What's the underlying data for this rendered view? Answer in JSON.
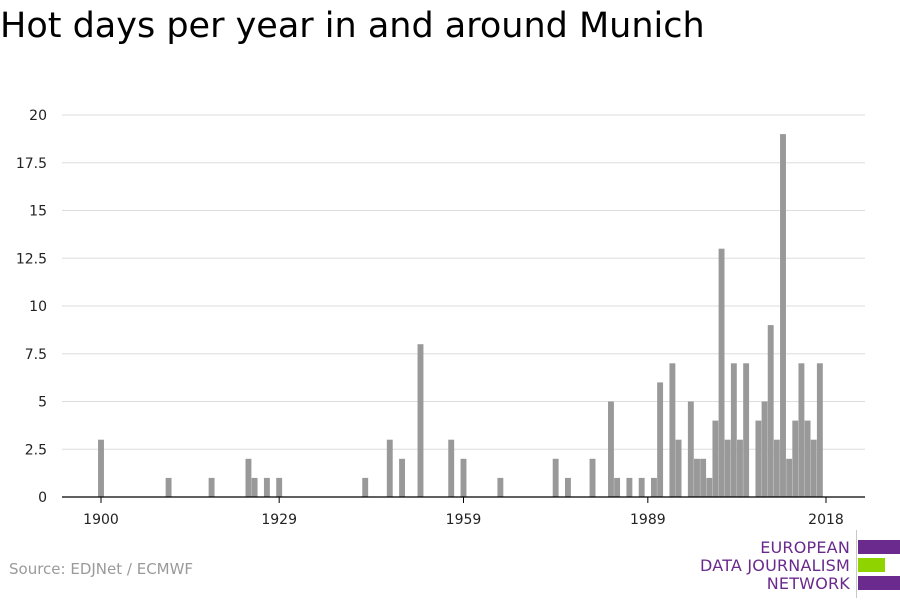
{
  "title": "Hot days per year in and around Munich",
  "source": "Source: EDJNet / ECMWF",
  "logo": {
    "line1": "EUROPEAN",
    "line2": "DATA JOURNALISM",
    "line3": "NETWORK",
    "colors": {
      "purple": "#6b2a8e",
      "green": "#8fd400"
    }
  },
  "colors": {
    "bar": "#999999",
    "grid": "#dddddd",
    "axis": "#000000"
  },
  "chart_data": {
    "type": "bar",
    "title": "Hot days per year in and around Munich",
    "xlabel": "",
    "ylabel": "",
    "xlim": [
      1900,
      2018
    ],
    "ylim": [
      0,
      20
    ],
    "x_ticks": [
      "1900",
      "1929",
      "1959",
      "1989",
      "2018"
    ],
    "y_ticks": [
      "0",
      "2.5",
      "5",
      "7.5",
      "10",
      "12.5",
      "15",
      "17.5",
      "20"
    ],
    "grid": true,
    "x": [
      1900,
      1911,
      1918,
      1924,
      1925,
      1927,
      1929,
      1943,
      1947,
      1949,
      1952,
      1957,
      1959,
      1965,
      1974,
      1976,
      1980,
      1983,
      1984,
      1986,
      1988,
      1990,
      1991,
      1993,
      1994,
      1996,
      1997,
      1998,
      1999,
      2000,
      2001,
      2002,
      2003,
      2004,
      2005,
      2007,
      2008,
      2009,
      2010,
      2011,
      2012,
      2013,
      2014,
      2015,
      2016,
      2017
    ],
    "values": [
      3,
      1,
      1,
      2,
      1,
      1,
      1,
      1,
      3,
      2,
      8,
      3,
      2,
      1,
      2,
      1,
      2,
      5,
      1,
      1,
      1,
      1,
      6,
      7,
      3,
      5,
      2,
      2,
      1,
      4,
      13,
      3,
      7,
      3,
      7,
      4,
      5,
      9,
      3,
      19,
      2,
      4,
      7,
      4,
      3,
      7
    ]
  }
}
